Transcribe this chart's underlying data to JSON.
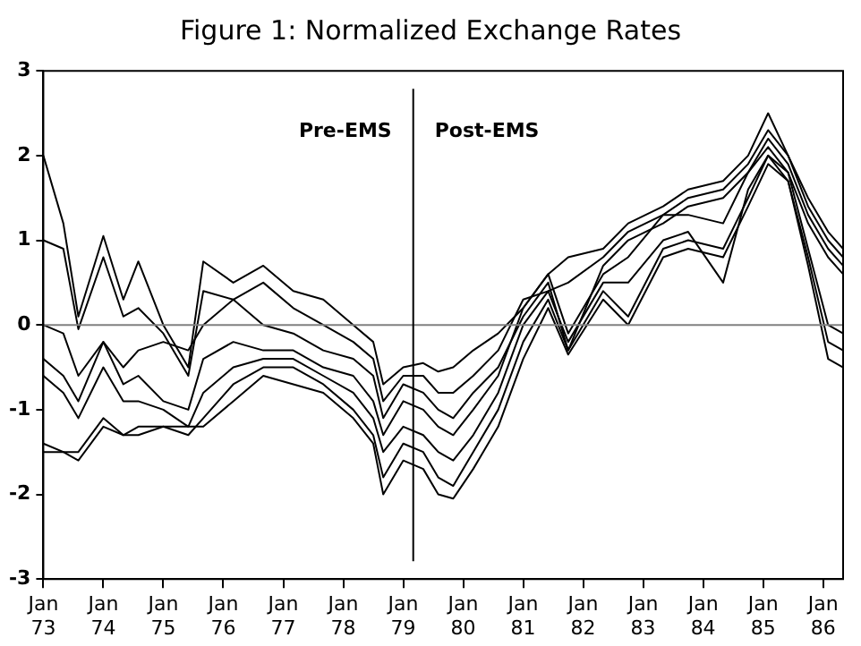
{
  "chart_data": {
    "type": "line",
    "title": "Figure 1: Normalized Exchange Rates",
    "x": [
      "1973-01",
      "1973-05",
      "1973-08",
      "1974-01",
      "1974-05",
      "1974-08",
      "1975-01",
      "1975-06",
      "1975-09",
      "1976-03",
      "1976-09",
      "1977-03",
      "1977-09",
      "1978-03",
      "1978-07",
      "1978-09",
      "1979-01",
      "1979-05",
      "1979-08",
      "1979-11",
      "1980-03",
      "1980-08",
      "1981-01",
      "1981-06",
      "1981-10",
      "1982-05",
      "1982-10",
      "1983-05",
      "1983-10",
      "1984-05",
      "1984-10",
      "1985-02",
      "1985-06",
      "1985-10",
      "1986-02",
      "1986-05"
    ],
    "series": [
      {
        "color": "#000000",
        "values": [
          2.0,
          1.2,
          0.1,
          1.05,
          0.3,
          0.75,
          0.0,
          -0.5,
          0.75,
          0.5,
          0.7,
          0.4,
          0.3,
          0.0,
          -0.2,
          -0.7,
          -0.5,
          -0.45,
          -0.55,
          -0.5,
          -0.3,
          -0.1,
          0.2,
          0.6,
          0.8,
          0.9,
          1.2,
          1.4,
          1.6,
          1.7,
          2.0,
          2.5,
          2.0,
          1.5,
          1.1,
          0.9
        ]
      },
      {
        "color": "#000000",
        "values": [
          1.0,
          0.9,
          -0.05,
          0.8,
          0.1,
          0.2,
          -0.1,
          -0.6,
          0.4,
          0.3,
          0.5,
          0.2,
          0.0,
          -0.2,
          -0.4,
          -0.9,
          -0.6,
          -0.6,
          -0.8,
          -0.8,
          -0.6,
          -0.3,
          0.3,
          0.4,
          0.5,
          0.8,
          1.1,
          1.3,
          1.5,
          1.6,
          1.9,
          2.3,
          2.0,
          1.4,
          1.0,
          0.8
        ]
      },
      {
        "color": "#000000",
        "values": [
          0.0,
          -0.1,
          -0.6,
          -0.2,
          -0.5,
          -0.3,
          -0.2,
          -0.3,
          0.0,
          0.3,
          0.0,
          -0.1,
          -0.3,
          -0.4,
          -0.6,
          -1.1,
          -0.7,
          -0.8,
          -1.0,
          -1.1,
          -0.8,
          -0.5,
          0.1,
          0.5,
          -0.3,
          0.7,
          1.0,
          1.2,
          1.4,
          1.5,
          1.8,
          2.2,
          1.9,
          1.3,
          0.9,
          0.7
        ]
      },
      {
        "color": "#000000",
        "values": [
          -0.4,
          -0.6,
          -0.9,
          -0.2,
          -0.7,
          -0.6,
          -0.9,
          -1.0,
          -0.4,
          -0.2,
          -0.3,
          -0.3,
          -0.5,
          -0.6,
          -0.9,
          -1.3,
          -0.9,
          -1.0,
          -1.2,
          -1.3,
          -1.0,
          -0.6,
          0.2,
          0.6,
          -0.1,
          0.6,
          0.8,
          1.3,
          1.3,
          1.2,
          1.8,
          2.1,
          1.8,
          1.2,
          0.8,
          0.6
        ]
      },
      {
        "color": "#000000",
        "values": [
          -0.6,
          -0.8,
          -1.1,
          -0.5,
          -0.9,
          -0.9,
          -1.0,
          -1.2,
          -0.8,
          -0.5,
          -0.4,
          -0.4,
          -0.6,
          -0.8,
          -1.1,
          -1.5,
          -1.2,
          -1.3,
          -1.5,
          -1.6,
          -1.3,
          -0.8,
          0.0,
          0.4,
          -0.2,
          0.5,
          0.5,
          1.0,
          1.1,
          0.5,
          1.6,
          2.0,
          1.8,
          0.9,
          0.0,
          -0.1
        ]
      },
      {
        "color": "#000000",
        "values": [
          -1.4,
          -1.5,
          -1.5,
          -1.1,
          -1.3,
          -1.2,
          -1.2,
          -1.3,
          -1.1,
          -0.7,
          -0.5,
          -0.5,
          -0.7,
          -1.0,
          -1.3,
          -1.8,
          -1.4,
          -1.5,
          -1.8,
          -1.9,
          -1.5,
          -1.0,
          -0.2,
          0.3,
          -0.3,
          0.4,
          0.1,
          0.9,
          1.0,
          0.9,
          1.5,
          2.0,
          1.7,
          0.8,
          -0.2,
          -0.3
        ]
      },
      {
        "color": "#000000",
        "values": [
          -1.5,
          -1.5,
          -1.6,
          -1.2,
          -1.3,
          -1.3,
          -1.2,
          -1.2,
          -1.2,
          -0.9,
          -0.6,
          -0.7,
          -0.8,
          -1.1,
          -1.4,
          -2.0,
          -1.6,
          -1.7,
          -2.0,
          -2.05,
          -1.7,
          -1.2,
          -0.4,
          0.2,
          -0.35,
          0.3,
          0.0,
          0.8,
          0.9,
          0.8,
          1.4,
          1.9,
          1.7,
          0.7,
          -0.4,
          -0.5
        ]
      }
    ],
    "xlim": [
      "1973-01",
      "1986-05"
    ],
    "xticks": [
      {
        "value": "1973-01",
        "label": "Jan\n73"
      },
      {
        "value": "1974-01",
        "label": "Jan\n74"
      },
      {
        "value": "1975-01",
        "label": "Jan\n75"
      },
      {
        "value": "1976-01",
        "label": "Jan\n76"
      },
      {
        "value": "1977-01",
        "label": "Jan\n77"
      },
      {
        "value": "1978-01",
        "label": "Jan\n78"
      },
      {
        "value": "1979-01",
        "label": "Jan\n79"
      },
      {
        "value": "1980-01",
        "label": "Jan\n80"
      },
      {
        "value": "1981-01",
        "label": "Jan\n81"
      },
      {
        "value": "1982-01",
        "label": "Jan\n82"
      },
      {
        "value": "1983-01",
        "label": "Jan\n83"
      },
      {
        "value": "1984-01",
        "label": "Jan\n84"
      },
      {
        "value": "1985-01",
        "label": "Jan\n85"
      },
      {
        "value": "1986-01",
        "label": "Jan\n86"
      }
    ],
    "ylim": [
      -3,
      3
    ],
    "yticks": [
      -3,
      -2,
      -1,
      0,
      1,
      2,
      3
    ],
    "ref_lines": [
      {
        "axis": "y",
        "value": 0,
        "color": "#808080"
      },
      {
        "axis": "x",
        "value": "1979-03",
        "color": "#000000"
      }
    ],
    "annotations": [
      "Pre-EMS",
      "Post-EMS"
    ],
    "grid": false,
    "legend": false,
    "marker": "none",
    "line_style": "solid"
  }
}
